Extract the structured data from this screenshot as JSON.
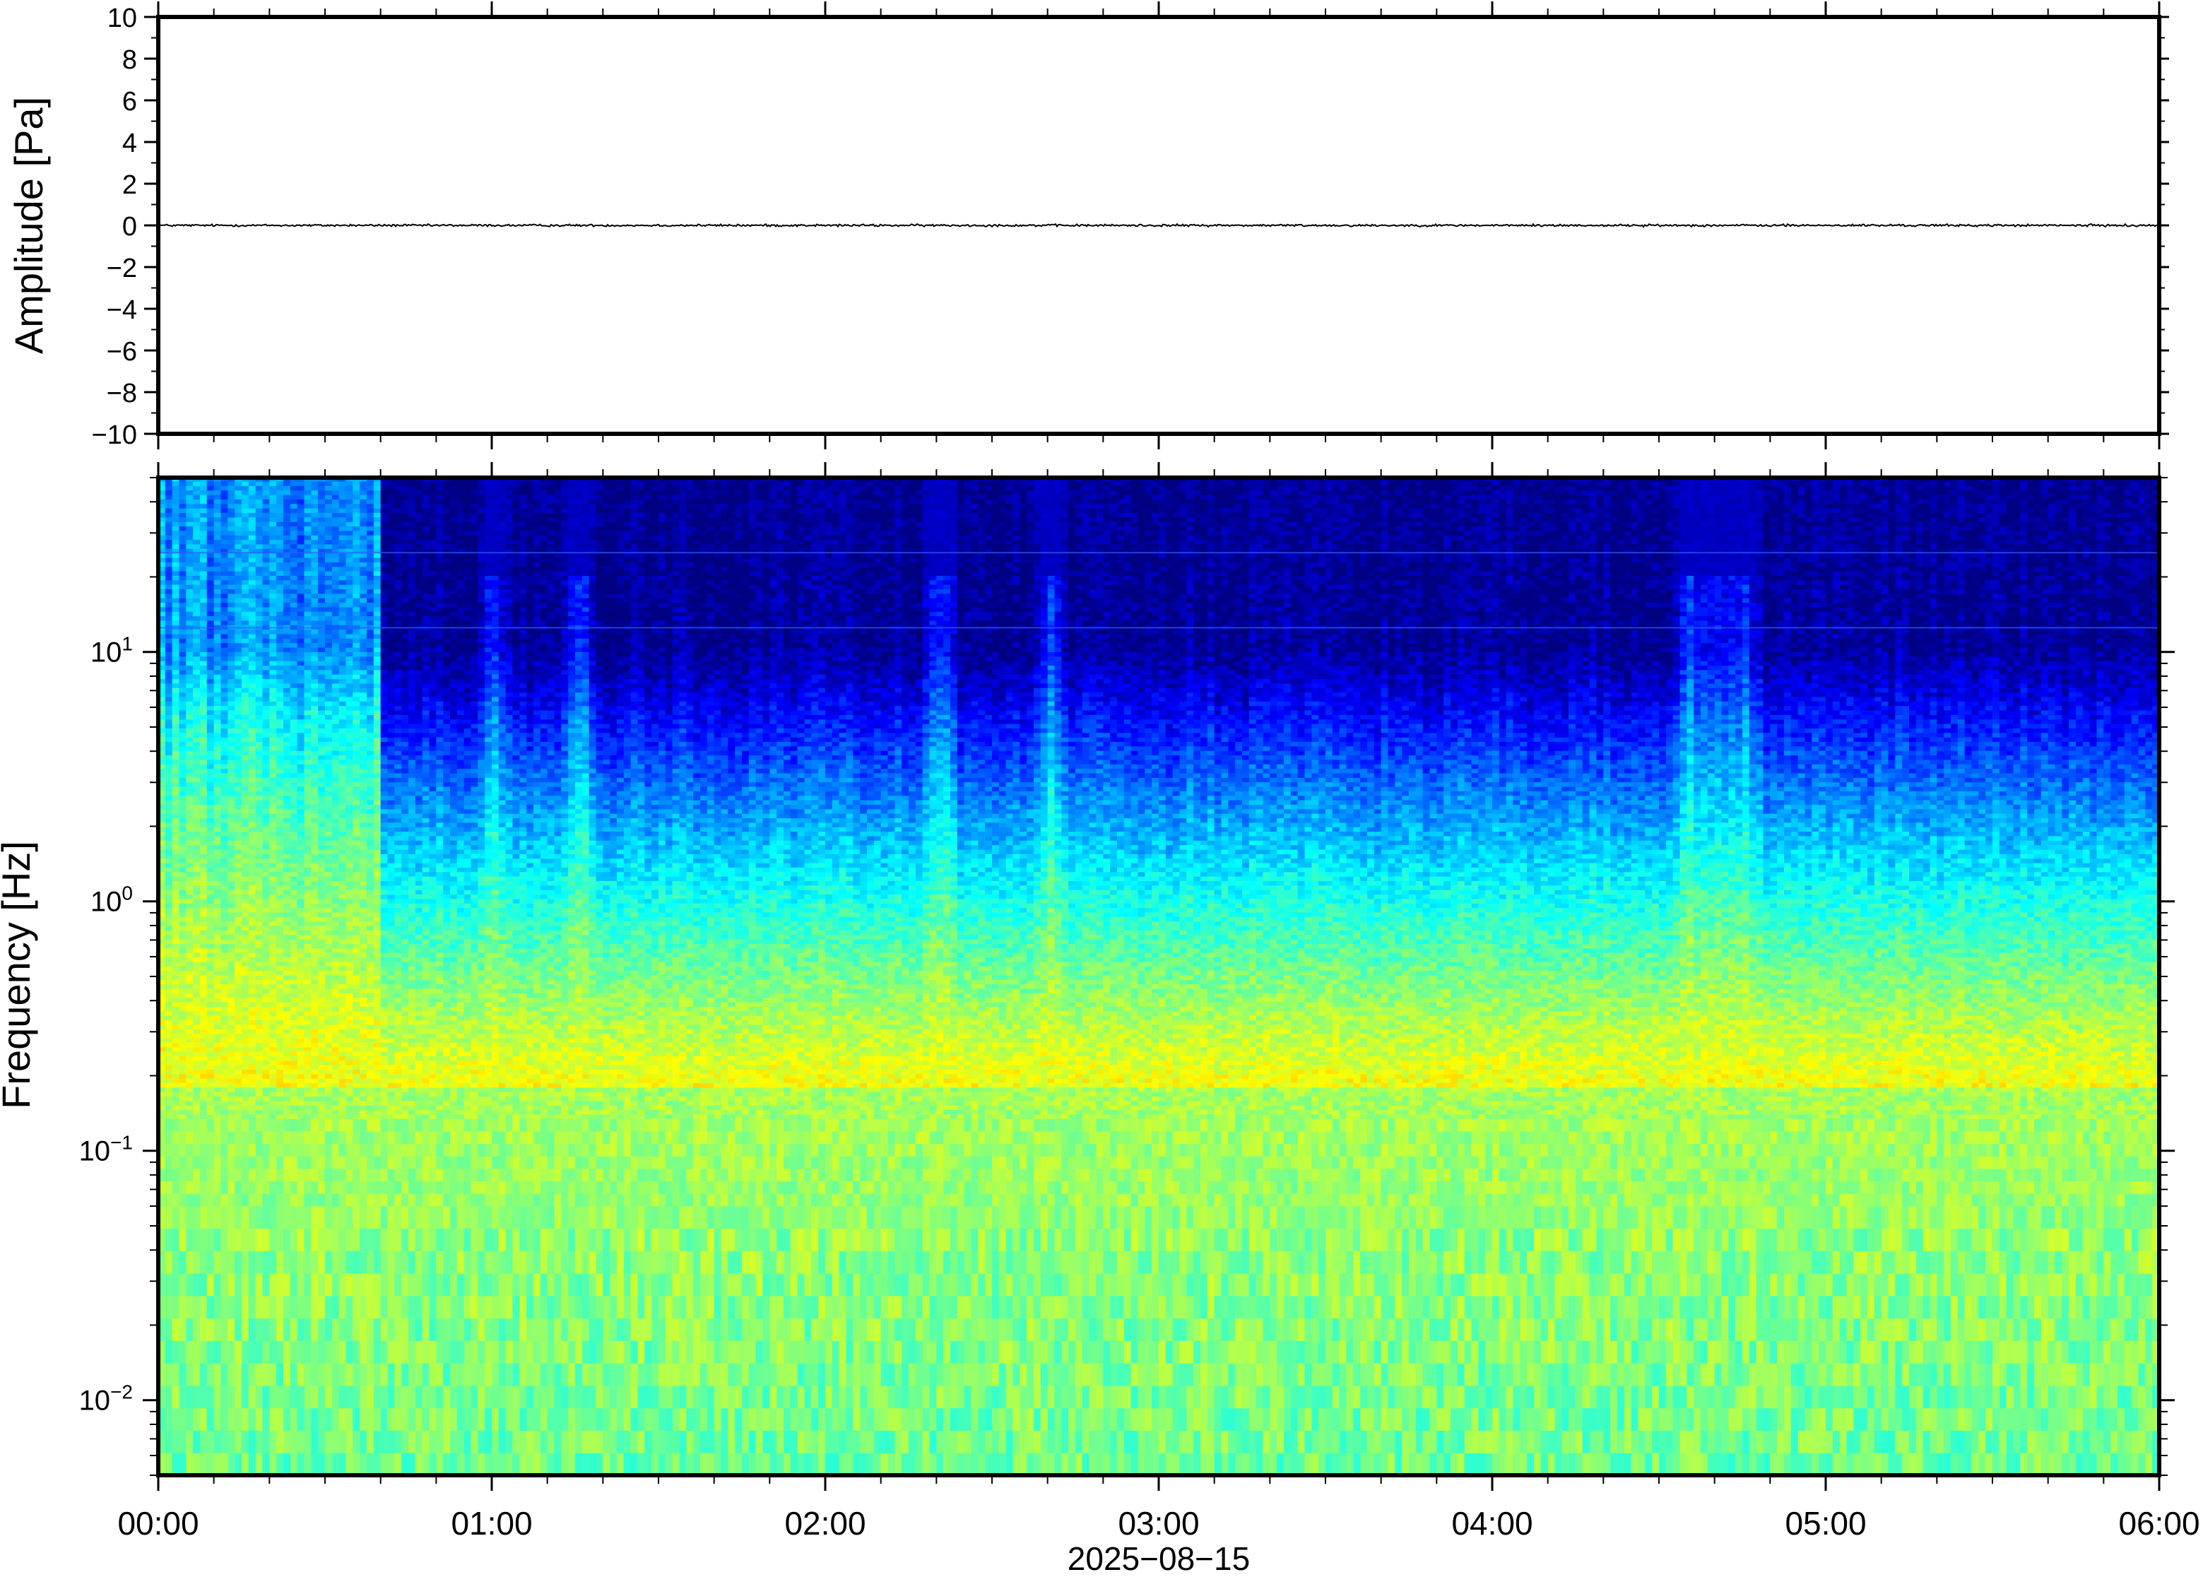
{
  "chart_data": [
    {
      "type": "line",
      "panel": "waveform",
      "ylabel": "Amplitude [Pa]",
      "ylim": [
        -10,
        10
      ],
      "yticks": [
        10,
        8,
        6,
        4,
        2,
        0,
        -2,
        -4,
        -6,
        -8,
        -10
      ],
      "ytick_labels": [
        "10",
        "8",
        "6",
        "4",
        "2",
        "0",
        "−2",
        "−4",
        "−6",
        "−8",
        "−10"
      ],
      "xlim": [
        "00:00",
        "06:00"
      ],
      "series": [
        {
          "values_description": "near-zero noise trace",
          "mean": 0.0,
          "amplitude_range": [
            -0.1,
            0.1
          ],
          "color": "#000000"
        }
      ]
    },
    {
      "type": "heatmap",
      "panel": "spectrogram",
      "ylabel": "Frequency [Hz]",
      "yscale": "log",
      "ylim": [
        0.005,
        50
      ],
      "yticks": [
        0.01,
        0.1,
        1,
        10
      ],
      "ytick_labels": [
        {
          "base": "10",
          "exp": "−2"
        },
        {
          "base": "10",
          "exp": "−1"
        },
        {
          "base": "10",
          "exp": "0"
        },
        {
          "base": "10",
          "exp": "1"
        }
      ],
      "xlim": [
        "00:00",
        "06:00"
      ],
      "xtick_labels": [
        "00:00",
        "01:00",
        "02:00",
        "03:00",
        "04:00",
        "05:00",
        "06:00"
      ],
      "xlabel": "2025−08−15",
      "colormap": "jet",
      "colors": {
        "low": "#00007f",
        "mid": "#33c7ff",
        "high": "#ffe04a",
        "peak": "#ff9d4a"
      },
      "features": {
        "microseism_peak_hz": 0.18,
        "high_energy_early_window": [
          "00:00",
          "00:40"
        ],
        "bursts": [
          "01:00",
          "01:15",
          "02:20",
          "02:40",
          "04:35",
          "04:40",
          "04:45"
        ],
        "narrowband_lines_hz": [
          25,
          12.5
        ]
      }
    }
  ]
}
